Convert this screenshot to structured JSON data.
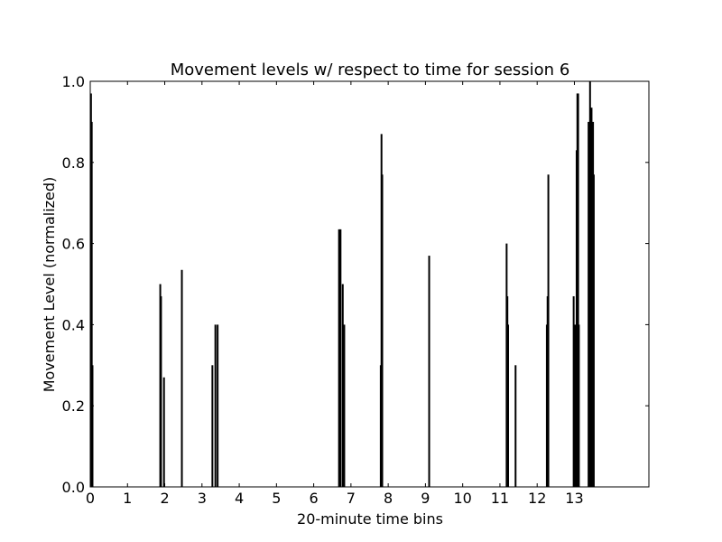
{
  "chart_data": {
    "type": "bar",
    "title": "Movement levels w/ respect to time for session 6",
    "xlabel": "20-minute time bins",
    "ylabel": "Movement Level (normalized)",
    "xlim": [
      0,
      15
    ],
    "ylim": [
      0,
      1.0
    ],
    "xticks": [
      0,
      1,
      2,
      3,
      4,
      5,
      6,
      7,
      8,
      9,
      10,
      11,
      12,
      13
    ],
    "xtick_labels": [
      "0",
      "1",
      "2",
      "3",
      "4",
      "5",
      "6",
      "7",
      "8",
      "9",
      "10",
      "11",
      "12",
      "13"
    ],
    "yticks": [
      0.0,
      0.2,
      0.4,
      0.6,
      0.8,
      1.0
    ],
    "ytick_labels": [
      "0.0",
      "0.2",
      "0.4",
      "0.6",
      "0.8",
      "1.0"
    ],
    "grid": false,
    "color": "#000000",
    "series": [
      {
        "x": [
          0.02,
          0.04,
          0.06,
          1.88,
          1.9,
          1.98,
          2.46,
          3.28,
          3.36,
          3.42,
          6.68,
          6.72,
          6.78,
          6.82,
          7.8,
          7.82,
          7.84,
          9.1,
          11.18,
          11.2,
          11.22,
          11.42,
          12.26,
          12.28,
          12.3,
          12.98,
          13.02,
          13.06,
          13.08,
          13.1,
          13.12,
          13.38,
          13.42,
          13.44,
          13.46,
          13.5,
          13.52,
          13.56
        ],
        "y": [
          0.97,
          0.9,
          0.3,
          0.5,
          0.47,
          0.27,
          0.535,
          0.3,
          0.4,
          0.4,
          0.635,
          0.635,
          0.5,
          0.4,
          0.3,
          0.87,
          0.77,
          0.57,
          0.6,
          0.47,
          0.4,
          0.3,
          0.4,
          0.47,
          0.77,
          0.47,
          0.4,
          0.83,
          0.97,
          0.97,
          0.4,
          0.9,
          1.0,
          0.9,
          0.935,
          0.9,
          0.77,
          0.0
        ]
      }
    ]
  }
}
